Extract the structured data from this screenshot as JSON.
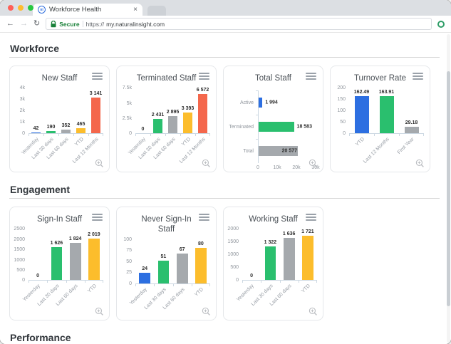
{
  "browser": {
    "traffic": {
      "close": "#ff5f57",
      "minimize": "#febc2e",
      "zoom": "#28c840"
    },
    "tab": {
      "title": "Workforce Health",
      "favicon_text": "ni",
      "close_glyph": "×"
    },
    "nav": {
      "back_glyph": "←",
      "forward_glyph": "→",
      "reload_glyph": "↻"
    },
    "address": {
      "secure_label": "Secure",
      "protocol": "https://",
      "host": "my.naturalinsight.com"
    }
  },
  "sections": [
    {
      "title": "Workforce"
    },
    {
      "title": "Engagement"
    },
    {
      "title": "Performance"
    }
  ],
  "chart_data": [
    {
      "id": "new-staff",
      "type": "bar",
      "orientation": "vertical",
      "section": "Workforce",
      "title": "New Staff",
      "categories": [
        "Yesterday",
        "Last 30 days",
        "Last 60 days",
        "YTD",
        "Last 12 Months"
      ],
      "values": [
        42,
        190,
        352,
        465,
        3141
      ],
      "value_labels": [
        "42",
        "190",
        "352",
        "465",
        "3 141"
      ],
      "colors": [
        "#2d6fe1",
        "#2abf6e",
        "#a5a9ad",
        "#fcbd2c",
        "#f4674c"
      ],
      "ymax": 4000,
      "ylim": [
        0,
        4000
      ],
      "yticks": [
        "4k",
        "3k",
        "2k",
        "1k",
        "0"
      ]
    },
    {
      "id": "terminated-staff",
      "type": "bar",
      "orientation": "vertical",
      "section": "Workforce",
      "title": "Terminated Staff",
      "categories": [
        "Yesterday",
        "Last 30 days",
        "Last 60 days",
        "YTD",
        "Last 12 Months"
      ],
      "values": [
        0,
        2431,
        2895,
        3393,
        6572
      ],
      "value_labels": [
        "0",
        "2 431",
        "2 895",
        "3 393",
        "6 572"
      ],
      "colors": [
        "#2d6fe1",
        "#2abf6e",
        "#a5a9ad",
        "#fcbd2c",
        "#f4674c"
      ],
      "ymax": 7500,
      "ylim": [
        0,
        7500
      ],
      "yticks": [
        "7.5k",
        "5k",
        "2.5k",
        "0"
      ]
    },
    {
      "id": "total-staff",
      "type": "bar",
      "orientation": "horizontal",
      "section": "Workforce",
      "title": "Total Staff",
      "categories": [
        "Active",
        "Terminated",
        "Total"
      ],
      "values": [
        1994,
        18583,
        20577
      ],
      "value_labels": [
        "1 994",
        "18 583",
        "20 577"
      ],
      "colors": [
        "#2d6fe1",
        "#2abf6e",
        "#a5a9ad"
      ],
      "xmax": 30000,
      "xlim": [
        0,
        30000
      ],
      "xticks": [
        "0",
        "10k",
        "20k",
        "30k"
      ]
    },
    {
      "id": "turnover-rate",
      "type": "bar",
      "orientation": "vertical",
      "section": "Workforce",
      "title": "Turnover Rate",
      "categories": [
        "YTD",
        "Last 12 Months",
        "First Year"
      ],
      "values": [
        162.49,
        163.91,
        29.18
      ],
      "value_labels": [
        "162.49",
        "163.91",
        "29.18"
      ],
      "colors": [
        "#2d6fe1",
        "#2abf6e",
        "#a5a9ad"
      ],
      "ymax": 200,
      "ylim": [
        0,
        200
      ],
      "yticks": [
        "200",
        "150",
        "100",
        "50",
        "0"
      ]
    },
    {
      "id": "sign-in-staff",
      "type": "bar",
      "orientation": "vertical",
      "section": "Engagement",
      "title": "Sign-In Staff",
      "categories": [
        "Yesterday",
        "Last 30 days",
        "Last 60 days",
        "YTD"
      ],
      "values": [
        0,
        1626,
        1824,
        2019
      ],
      "value_labels": [
        "0",
        "1 626",
        "1 824",
        "2 019"
      ],
      "colors": [
        "#2d6fe1",
        "#2abf6e",
        "#a5a9ad",
        "#fcbd2c"
      ],
      "ymax": 2500,
      "ylim": [
        0,
        2500
      ],
      "yticks": [
        "2500",
        "2000",
        "1500",
        "1000",
        "500",
        "0"
      ]
    },
    {
      "id": "never-sign-in-staff",
      "type": "bar",
      "orientation": "vertical",
      "section": "Engagement",
      "title": "Never Sign-In Staff",
      "categories": [
        "Yesterday",
        "Last 30 days",
        "Last 60 days",
        "YTD"
      ],
      "values": [
        24,
        51,
        67,
        80
      ],
      "value_labels": [
        "24",
        "51",
        "67",
        "80"
      ],
      "colors": [
        "#2d6fe1",
        "#2abf6e",
        "#a5a9ad",
        "#fcbd2c"
      ],
      "ymax": 100,
      "ylim": [
        0,
        100
      ],
      "yticks": [
        "100",
        "75",
        "50",
        "25",
        "0"
      ]
    },
    {
      "id": "working-staff",
      "type": "bar",
      "orientation": "vertical",
      "section": "Engagement",
      "title": "Working Staff",
      "categories": [
        "Yesterday",
        "Last 30 days",
        "Last 60 days",
        "YTD"
      ],
      "values": [
        0,
        1322,
        1636,
        1721
      ],
      "value_labels": [
        "0",
        "1 322",
        "1 636",
        "1 721"
      ],
      "colors": [
        "#2d6fe1",
        "#2abf6e",
        "#a5a9ad",
        "#fcbd2c"
      ],
      "ymax": 2000,
      "ylim": [
        0,
        2000
      ],
      "yticks": [
        "2000",
        "1500",
        "1000",
        "500",
        "0"
      ]
    }
  ]
}
